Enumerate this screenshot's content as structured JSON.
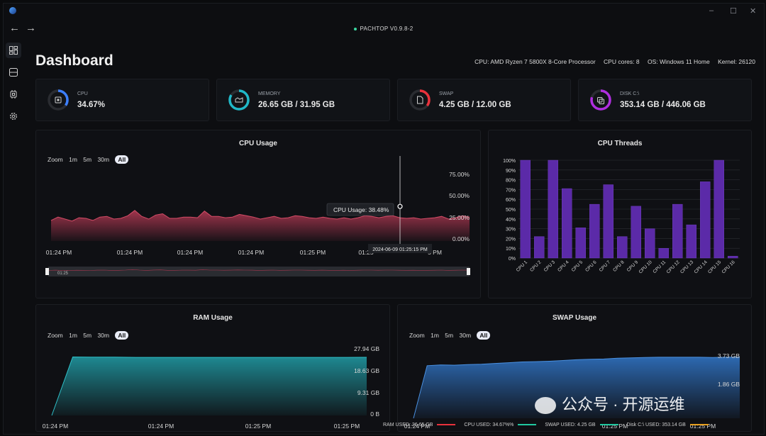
{
  "window": {
    "app_name": "PACHTOP V0.9.8-2",
    "minimize": "–",
    "maximize": "☐",
    "close": "✕"
  },
  "nav": {
    "back": "←",
    "forward": "→"
  },
  "sidebar": {
    "items": [
      {
        "icon": "dashboard-icon",
        "active": true
      },
      {
        "icon": "storage-icon",
        "active": false
      },
      {
        "icon": "chip-icon",
        "active": false
      },
      {
        "icon": "gear-icon",
        "active": false
      }
    ]
  },
  "header": {
    "title": "Dashboard",
    "cpu_model": "CPU: AMD Ryzen 7 5800X 8-Core Processor",
    "cpu_cores": "CPU cores: 8",
    "os": "OS: Windows 11 Home",
    "kernel": "Kernel: 26120"
  },
  "stats": [
    {
      "label": "CPU",
      "value": "34.67%",
      "fraction": 0.3467,
      "color": "#3d7fff",
      "icon": "chip-icon"
    },
    {
      "label": "MEMORY",
      "value": "26.65 GB / 31.95 GB",
      "fraction": 0.834,
      "color": "#20b8c8",
      "icon": "memory-icon"
    },
    {
      "label": "SWAP",
      "value": "4.25 GB / 12.00 GB",
      "fraction": 0.354,
      "color": "#e8323c",
      "icon": "file-icon"
    },
    {
      "label": "DISK C:\\",
      "value": "353.14 GB / 446.06 GB",
      "fraction": 0.792,
      "color": "#b02ee0",
      "icon": "disk-icon"
    }
  ],
  "zoom": {
    "label": "Zoom",
    "options": [
      "1m",
      "5m",
      "30m",
      "All"
    ]
  },
  "chart_data": [
    {
      "type": "area",
      "title": "CPU Usage",
      "y_ticks": [
        "75.00%",
        "50.00%",
        "25.00%",
        "0.00%"
      ],
      "x_ticks": [
        "01:24 PM",
        "01:24 PM",
        "01:24 PM",
        "01:24 PM",
        "01:25 PM",
        "01:25",
        "5 PM"
      ],
      "series": [
        {
          "values": [
            31,
            36,
            33,
            30,
            35,
            34,
            31,
            36,
            37,
            33,
            34,
            38,
            46,
            37,
            33,
            39,
            41,
            34,
            34,
            36,
            36,
            35,
            45,
            37,
            37,
            35,
            36,
            40,
            38,
            36,
            33,
            35,
            37,
            34,
            35,
            38,
            37,
            35,
            34,
            36,
            34,
            33,
            35,
            33,
            35,
            38,
            37,
            35,
            37,
            38,
            35,
            34,
            35,
            33,
            34,
            35,
            37,
            33,
            35,
            38,
            36
          ]
        }
      ],
      "ylim": [
        0,
        100
      ],
      "color": "#a8364f",
      "tooltip": {
        "label": "CPU Usage: 38.48%",
        "time": "2024-06-09 01:25:15 PM",
        "value": 38.48
      },
      "navigator_label": "01:25"
    },
    {
      "type": "bar",
      "title": "CPU Threads",
      "categories": [
        "CPU 1",
        "CPU 2",
        "CPU 3",
        "CPU 4",
        "CPU 5",
        "CPU 6",
        "CPU 7",
        "CPU 8",
        "CPU 9",
        "CPU 10",
        "CPU 11",
        "CPU 12",
        "CPU 13",
        "CPU 14",
        "CPU 15",
        "CPU 16"
      ],
      "values": [
        100,
        22,
        100,
        71,
        31,
        55,
        75,
        22,
        53,
        30,
        10,
        55,
        34,
        78,
        100,
        2
      ],
      "y_ticks": [
        "100%",
        "90%",
        "80%",
        "70%",
        "60%",
        "50%",
        "40%",
        "30%",
        "20%",
        "10%",
        "0%"
      ],
      "ylim": [
        0,
        100
      ],
      "color": "#5b2aa8"
    },
    {
      "type": "area",
      "title": "RAM Usage",
      "y_ticks": [
        "27.94 GB",
        "18.63 GB",
        "9.31 GB",
        "0 B"
      ],
      "x_ticks": [
        "01:24 PM",
        "01:24 PM",
        "01:25 PM",
        "01:25 PM"
      ],
      "series": [
        {
          "values": [
            0,
            26.8,
            26.7,
            26.7,
            26.6,
            26.6,
            26.6,
            26.6,
            26.6,
            26.6,
            26.6,
            26.6,
            26.6,
            26.6,
            26.6,
            26.65
          ]
        }
      ],
      "ylim": [
        0,
        27.94
      ],
      "color": "#1f8f98"
    },
    {
      "type": "area",
      "title": "SWAP Usage",
      "y_ticks": [
        "3.73 GB",
        "1.86 GB"
      ],
      "x_ticks": [
        "01:24 PM",
        "01:25 PM",
        "01:25 PM"
      ],
      "series": [
        {
          "values": [
            0,
            3.55,
            3.6,
            3.58,
            3.62,
            3.65,
            3.7,
            3.75,
            3.8,
            3.82,
            3.85,
            3.9,
            3.95,
            3.98,
            4.0,
            4.05,
            4.08,
            4.1,
            4.12,
            4.12,
            4.12,
            4.12,
            4.1,
            4.12,
            4.12
          ]
        }
      ],
      "ylim": [
        0,
        4.4
      ],
      "color": "#2e6db8"
    }
  ],
  "statusbar": [
    {
      "label": "RAM USED: 26.65 GB",
      "color": "#e8323c"
    },
    {
      "label": "CPU USED: 34.67%%",
      "color": "#20c8a0"
    },
    {
      "label": "SWAP USED: 4.25 GB",
      "color": "#20c8a0"
    },
    {
      "label": "Disk C:\\ USED: 353.14 GB",
      "color": "#e8a020"
    }
  ],
  "watermark": "公众号 · 开源运维"
}
